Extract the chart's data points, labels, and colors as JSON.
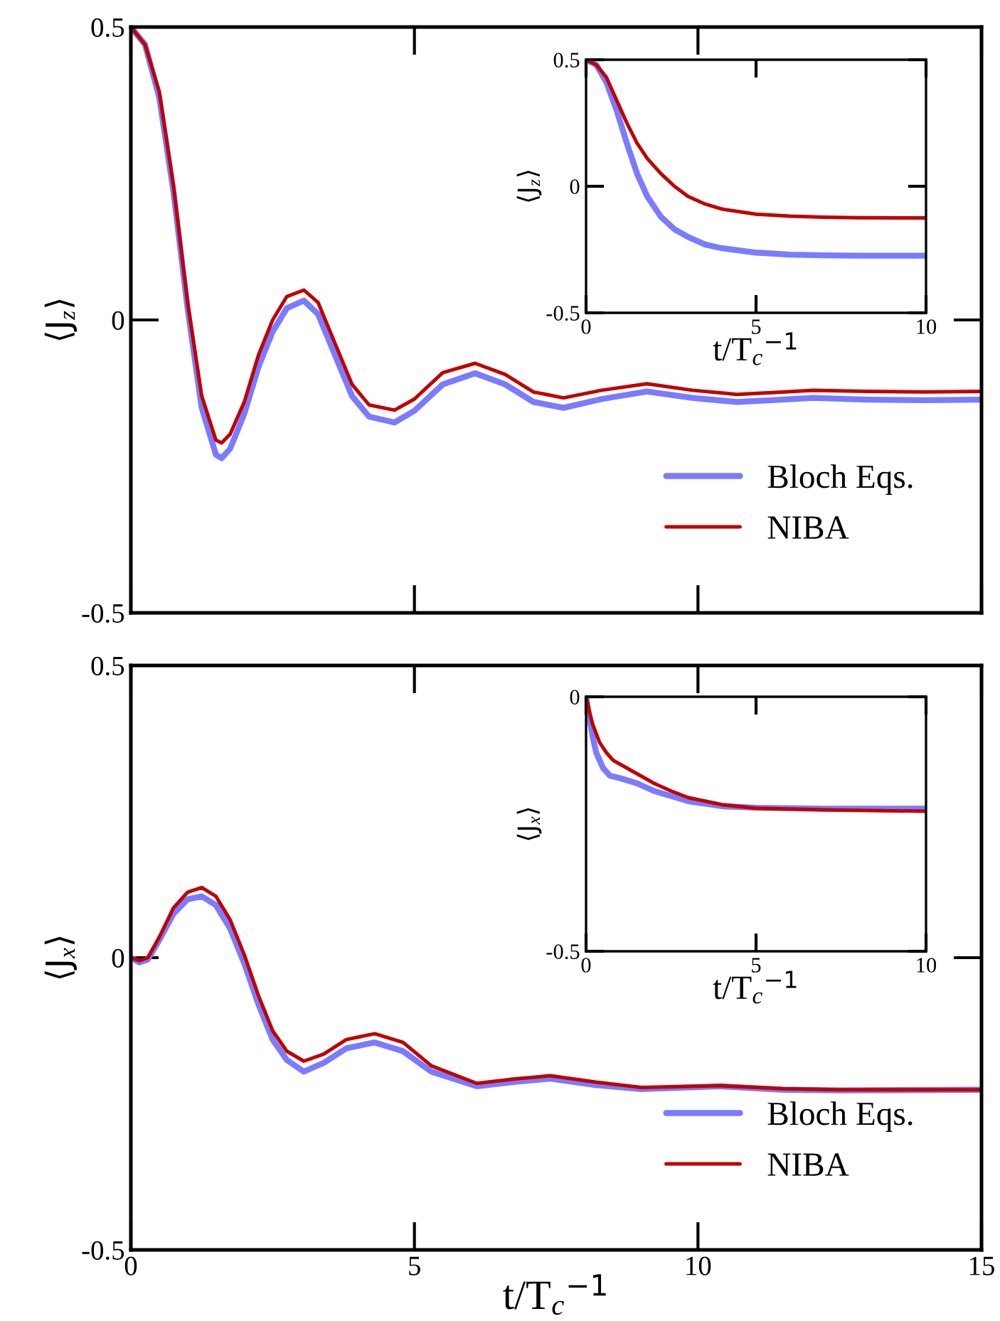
{
  "chart_data": [
    {
      "type": "line",
      "ylabel": "⟨J$_{z}$⟩",
      "xlim": [
        0,
        15
      ],
      "xticks": [
        0,
        5,
        10,
        15
      ],
      "ylim": [
        -0.5,
        0.5
      ],
      "yticks": [
        -0.5,
        0,
        0.5
      ],
      "tick_labels": "y",
      "grid": false,
      "legend": "bottom right",
      "series": [
        {
          "name": "Bloch Eqs.",
          "color": "#7b7bff",
          "x": [
            0,
            0.25,
            0.5,
            0.75,
            1.0,
            1.25,
            1.5,
            1.6,
            1.75,
            2.0,
            2.25,
            2.5,
            2.75,
            3.05,
            3.3,
            3.6,
            3.9,
            4.2,
            4.65,
            5.0,
            5.5,
            6.07,
            6.6,
            7.1,
            7.63,
            8.3,
            9.1,
            9.9,
            10.68,
            11.3,
            12.03,
            13,
            14,
            15
          ],
          "values": [
            0.5,
            0.47,
            0.38,
            0.22,
            0.02,
            -0.15,
            -0.23,
            -0.236,
            -0.22,
            -0.16,
            -0.08,
            -0.02,
            0.02,
            0.033,
            0.01,
            -0.06,
            -0.13,
            -0.165,
            -0.175,
            -0.155,
            -0.11,
            -0.091,
            -0.11,
            -0.14,
            -0.15,
            -0.135,
            -0.122,
            -0.133,
            -0.14,
            -0.137,
            -0.133,
            -0.136,
            -0.137,
            -0.136
          ]
        },
        {
          "name": "NIBA",
          "color": "#c00000",
          "x": [
            0,
            0.25,
            0.5,
            0.75,
            1.0,
            1.25,
            1.5,
            1.6,
            1.75,
            2.0,
            2.25,
            2.5,
            2.75,
            3.05,
            3.3,
            3.6,
            3.9,
            4.2,
            4.65,
            5.0,
            5.5,
            6.07,
            6.6,
            7.1,
            7.63,
            8.3,
            9.1,
            9.9,
            10.68,
            11.3,
            12.03,
            13,
            14,
            15
          ],
          "values": [
            0.5,
            0.47,
            0.39,
            0.23,
            0.03,
            -0.13,
            -0.205,
            -0.21,
            -0.195,
            -0.14,
            -0.06,
            0.0,
            0.04,
            0.051,
            0.03,
            -0.04,
            -0.11,
            -0.145,
            -0.154,
            -0.135,
            -0.09,
            -0.074,
            -0.093,
            -0.123,
            -0.133,
            -0.12,
            -0.109,
            -0.12,
            -0.127,
            -0.124,
            -0.12,
            -0.122,
            -0.123,
            -0.122
          ]
        }
      ]
    },
    {
      "type": "line",
      "ylabel": "⟨J$_{z}$⟩",
      "xlabel": "t/T$_{c}$$^{−1}$",
      "xlim": [
        0,
        10
      ],
      "xticks": [
        0,
        5,
        10
      ],
      "ylim": [
        -0.5,
        0.5
      ],
      "yticks": [
        -0.5,
        0,
        0.5
      ],
      "grid": false,
      "series": [
        {
          "color": "#7b7bff",
          "x": [
            0,
            0.3,
            0.6,
            0.9,
            1.2,
            1.5,
            1.8,
            2.2,
            2.6,
            3,
            3.5,
            4,
            5,
            6,
            7,
            8,
            10
          ],
          "values": [
            0.5,
            0.48,
            0.41,
            0.3,
            0.17,
            0.05,
            -0.04,
            -0.12,
            -0.17,
            -0.2,
            -0.23,
            -0.245,
            -0.262,
            -0.27,
            -0.273,
            -0.274,
            -0.274
          ]
        },
        {
          "color": "#c00000",
          "x": [
            0,
            0.3,
            0.6,
            0.9,
            1.2,
            1.5,
            1.8,
            2.2,
            2.6,
            3,
            3.5,
            4,
            5,
            6,
            7,
            8,
            10
          ],
          "values": [
            0.5,
            0.48,
            0.43,
            0.34,
            0.25,
            0.17,
            0.11,
            0.05,
            0.0,
            -0.04,
            -0.07,
            -0.09,
            -0.11,
            -0.118,
            -0.122,
            -0.124,
            -0.125
          ]
        }
      ]
    },
    {
      "type": "line",
      "ylabel": "⟨J$_{x}$⟩",
      "xlabel": "t/T$_{c}$$^{−1}$",
      "xlim": [
        0,
        15
      ],
      "xticks": [
        0,
        5,
        10,
        15
      ],
      "ylim": [
        -0.5,
        0.5
      ],
      "yticks": [
        -0.5,
        0,
        0.5
      ],
      "grid": false,
      "legend": "bottom right",
      "series": [
        {
          "name": "Bloch Eqs.",
          "color": "#7b7bff",
          "x": [
            0,
            0.15,
            0.3,
            0.5,
            0.75,
            1.0,
            1.25,
            1.5,
            1.75,
            2.0,
            2.25,
            2.5,
            2.75,
            3.05,
            3.4,
            3.8,
            4.3,
            4.8,
            5.3,
            6.1,
            6.8,
            7.4,
            8.2,
            9.0,
            10.4,
            11.5,
            12.5,
            15
          ],
          "values": [
            0,
            -0.008,
            -0.003,
            0.03,
            0.075,
            0.1,
            0.105,
            0.09,
            0.05,
            -0.01,
            -0.08,
            -0.14,
            -0.175,
            -0.195,
            -0.18,
            -0.155,
            -0.145,
            -0.16,
            -0.195,
            -0.22,
            -0.212,
            -0.207,
            -0.218,
            -0.225,
            -0.22,
            -0.226,
            -0.227,
            -0.226
          ]
        },
        {
          "name": "NIBA",
          "color": "#c00000",
          "x": [
            0,
            0.15,
            0.3,
            0.5,
            0.75,
            1.0,
            1.25,
            1.5,
            1.75,
            2.0,
            2.25,
            2.5,
            2.75,
            3.05,
            3.4,
            3.8,
            4.3,
            4.8,
            5.3,
            6.1,
            6.8,
            7.4,
            8.2,
            9.0,
            10.4,
            11.5,
            12.5,
            15
          ],
          "values": [
            0,
            -0.005,
            0.0,
            0.035,
            0.085,
            0.112,
            0.12,
            0.105,
            0.065,
            0.005,
            -0.065,
            -0.125,
            -0.16,
            -0.177,
            -0.165,
            -0.14,
            -0.13,
            -0.145,
            -0.185,
            -0.215,
            -0.207,
            -0.202,
            -0.213,
            -0.222,
            -0.219,
            -0.224,
            -0.226,
            -0.226
          ]
        }
      ]
    },
    {
      "type": "line",
      "ylabel": "⟨J$_{x}$⟩",
      "xlabel": "t/T$_{c}$$^{−1}$",
      "xlim": [
        0,
        10
      ],
      "xticks": [
        0,
        5,
        10
      ],
      "ylim": [
        -0.5,
        0
      ],
      "yticks": [
        -0.5,
        0
      ],
      "grid": false,
      "series": [
        {
          "color": "#7b7bff",
          "x": [
            0,
            0.1,
            0.2,
            0.3,
            0.5,
            0.7,
            1.0,
            1.5,
            2,
            3,
            4,
            5,
            7,
            10
          ],
          "values": [
            0,
            -0.04,
            -0.08,
            -0.11,
            -0.14,
            -0.155,
            -0.16,
            -0.17,
            -0.185,
            -0.205,
            -0.215,
            -0.218,
            -0.22,
            -0.22
          ]
        },
        {
          "color": "#c00000",
          "x": [
            0,
            0.1,
            0.2,
            0.4,
            0.6,
            0.8,
            1.2,
            1.6,
            2,
            2.5,
            3,
            4,
            5,
            7,
            10
          ],
          "values": [
            0,
            -0.03,
            -0.055,
            -0.09,
            -0.11,
            -0.125,
            -0.14,
            -0.155,
            -0.17,
            -0.185,
            -0.198,
            -0.212,
            -0.219,
            -0.222,
            -0.225
          ]
        }
      ]
    }
  ]
}
